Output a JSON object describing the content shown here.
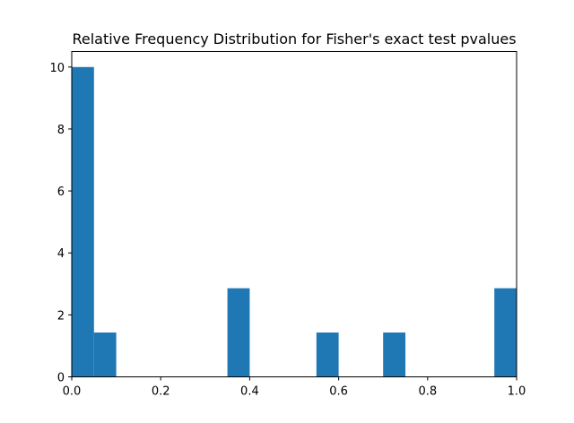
{
  "chart_data": {
    "type": "bar",
    "title": "Relative Frequency Distribution for Fisher's exact test pvalues",
    "xlabel": "",
    "ylabel": "",
    "xlim": [
      0.0,
      1.0
    ],
    "ylim": [
      0,
      10.5
    ],
    "x_ticks": [
      "0.0",
      "0.2",
      "0.4",
      "0.6",
      "0.8",
      "1.0"
    ],
    "y_ticks": [
      "0",
      "2",
      "4",
      "6",
      "8",
      "10"
    ],
    "bin_edges": [
      0.0,
      0.05,
      0.1,
      0.15,
      0.2,
      0.25,
      0.3,
      0.35,
      0.4,
      0.45,
      0.5,
      0.55,
      0.6,
      0.65,
      0.7,
      0.75,
      0.8,
      0.85,
      0.9,
      0.95,
      1.0
    ],
    "values": [
      10.0,
      1.43,
      0,
      0,
      0,
      0,
      0,
      2.86,
      0,
      0,
      0,
      1.43,
      0,
      0,
      1.43,
      0,
      0,
      0,
      0,
      2.86
    ],
    "bar_color": "#1f77b4",
    "grid": false,
    "legend": "none"
  }
}
